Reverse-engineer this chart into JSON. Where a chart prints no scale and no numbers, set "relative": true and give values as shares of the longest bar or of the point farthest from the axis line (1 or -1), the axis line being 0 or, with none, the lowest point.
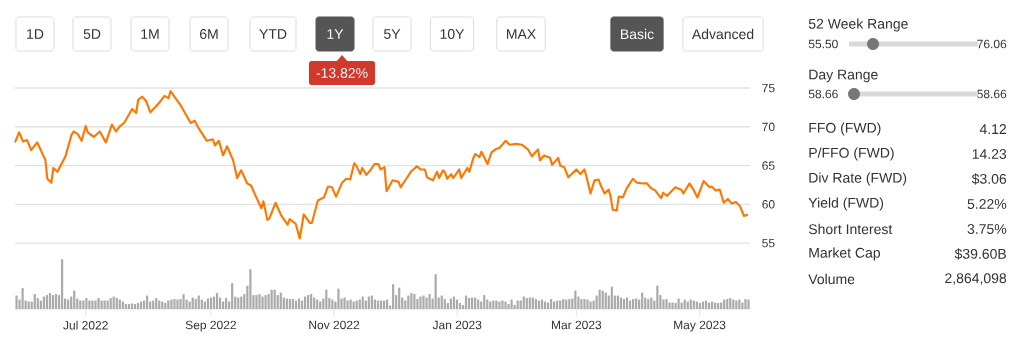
{
  "chart_data": [
    {
      "type": "line",
      "color": "#ff7700",
      "x": [
        "2022-05-27",
        "2022-05-29",
        "2022-05-31",
        "2022-06-02",
        "2022-06-04",
        "2022-06-07",
        "2022-06-10",
        "2022-06-11",
        "2022-06-12",
        "2022-06-14",
        "2022-06-15",
        "2022-06-17",
        "2022-06-21",
        "2022-06-24",
        "2022-06-25",
        "2022-06-27",
        "2022-06-29",
        "2022-07-01",
        "2022-07-02",
        "2022-07-05",
        "2022-07-08",
        "2022-07-11",
        "2022-07-14",
        "2022-07-16",
        "2022-07-18",
        "2022-07-20",
        "2022-07-22",
        "2022-07-24",
        "2022-07-26",
        "2022-07-27",
        "2022-07-29",
        "2022-07-31",
        "2022-08-02",
        "2022-08-05",
        "2022-08-07",
        "2022-08-09",
        "2022-08-11",
        "2022-08-12",
        "2022-08-15",
        "2022-08-17",
        "2022-08-22",
        "2022-08-24",
        "2022-08-26",
        "2022-08-30",
        "2022-09-02",
        "2022-09-03",
        "2022-09-05",
        "2022-09-07",
        "2022-09-09",
        "2022-09-12",
        "2022-09-14",
        "2022-09-16",
        "2022-09-19",
        "2022-09-21",
        "2022-09-23",
        "2022-09-26",
        "2022-09-27",
        "2022-09-29",
        "2022-09-30",
        "2022-10-03",
        "2022-10-06",
        "2022-10-09",
        "2022-10-10",
        "2022-10-13",
        "2022-10-15",
        "2022-10-17",
        "2022-10-20",
        "2022-10-21",
        "2022-10-24",
        "2022-10-27",
        "2022-10-29",
        "2022-10-31",
        "2022-11-02",
        "2022-11-05",
        "2022-11-07",
        "2022-11-09",
        "2022-11-11",
        "2022-11-12",
        "2022-11-14",
        "2022-11-15",
        "2022-11-17",
        "2022-11-19",
        "2022-11-21",
        "2022-11-23",
        "2022-11-24",
        "2022-11-26",
        "2022-11-27",
        "2022-11-30",
        "2022-12-03",
        "2022-12-04",
        "2022-12-07",
        "2022-12-09",
        "2022-12-12",
        "2022-12-14",
        "2022-12-16",
        "2022-12-17",
        "2022-12-20",
        "2022-12-22",
        "2022-12-23",
        "2022-12-25",
        "2022-12-26",
        "2022-12-27",
        "2022-12-29",
        "2022-12-30",
        "2023-01-02",
        "2023-01-03",
        "2023-01-06",
        "2023-01-07",
        "2023-01-09",
        "2023-01-10",
        "2023-01-12",
        "2023-01-13",
        "2023-01-16",
        "2023-01-18",
        "2023-01-20",
        "2023-01-22",
        "2023-01-25",
        "2023-01-27",
        "2023-01-30",
        "2023-02-02",
        "2023-02-05",
        "2023-02-07",
        "2023-02-10",
        "2023-02-11",
        "2023-02-13",
        "2023-02-16",
        "2023-02-17",
        "2023-02-20",
        "2023-02-21",
        "2023-02-23",
        "2023-02-25",
        "2023-03-01",
        "2023-03-03",
        "2023-03-05",
        "2023-03-06",
        "2023-03-08",
        "2023-03-10",
        "2023-03-12",
        "2023-03-13",
        "2023-03-15",
        "2023-03-17",
        "2023-03-18",
        "2023-03-19",
        "2023-03-21",
        "2023-03-22",
        "2023-03-24",
        "2023-03-26",
        "2023-03-29",
        "2023-03-31",
        "2023-04-03",
        "2023-04-05",
        "2023-04-07",
        "2023-04-09",
        "2023-04-12",
        "2023-04-13",
        "2023-04-15",
        "2023-04-19",
        "2023-04-22",
        "2023-04-23",
        "2023-04-26",
        "2023-04-28",
        "2023-04-30",
        "2023-05-03",
        "2023-05-06",
        "2023-05-07",
        "2023-05-09",
        "2023-05-11",
        "2023-05-13",
        "2023-05-15",
        "2023-05-17",
        "2023-05-19",
        "2023-05-21",
        "2023-05-23",
        "2023-05-25"
      ],
      "values": [
        68.0,
        69.3,
        68.1,
        68.3,
        67.0,
        68.0,
        66.3,
        65.8,
        63.3,
        62.8,
        64.7,
        64.2,
        66.2,
        69.0,
        69.4,
        69.1,
        68.2,
        70.1,
        69.3,
        68.7,
        69.4,
        68.0,
        70.3,
        69.4,
        70.1,
        70.5,
        71.4,
        72.3,
        71.8,
        73.5,
        73.9,
        73.3,
        71.9,
        72.7,
        73.3,
        74.0,
        73.7,
        74.6,
        73.5,
        72.8,
        70.5,
        70.8,
        69.8,
        68.2,
        68.4,
        67.6,
        68.2,
        66.3,
        67.5,
        65.7,
        63.4,
        64.4,
        62.7,
        62.4,
        61.2,
        59.5,
        60.4,
        58.0,
        58.2,
        60.2,
        58.5,
        57.4,
        58.1,
        57.5,
        55.6,
        58.7,
        57.6,
        57.6,
        60.5,
        60.9,
        62.3,
        62.2,
        61.0,
        62.8,
        63.3,
        63.2,
        65.3,
        65.0,
        63.9,
        64.7,
        63.8,
        64.4,
        65.2,
        65.2,
        64.5,
        64.8,
        61.7,
        63.1,
        62.9,
        62.2,
        63.4,
        64.2,
        64.9,
        64.5,
        64.5,
        63.5,
        63.1,
        64.2,
        63.4,
        64.4,
        64.1,
        63.3,
        63.9,
        63.4,
        64.5,
        63.4,
        64.7,
        64.2,
        66.0,
        66.5,
        66.1,
        66.8,
        65.2,
        66.7,
        67.1,
        67.3,
        68.2,
        67.7,
        67.8,
        67.7,
        67.1,
        66.2,
        67.1,
        65.7,
        66.3,
        66.0,
        65.1,
        66.0,
        65.0,
        64.8,
        63.5,
        64.5,
        63.9,
        64.5,
        63.6,
        61.4,
        63.1,
        63.2,
        62.5,
        61.4,
        61.9,
        61.0,
        59.3,
        59.2,
        61.0,
        60.9,
        62.1,
        63.3,
        62.8,
        62.7,
        62.7,
        62.1,
        61.8,
        60.8,
        61.5,
        61.1,
        62.2,
        61.9,
        61.4,
        62.7,
        61.9,
        60.9,
        63.0,
        62.2,
        62.3,
        61.8,
        61.9,
        60.2,
        60.7,
        60.1,
        60.3,
        59.8,
        58.5,
        58.7
      ],
      "xlim": [
        "2022-05-27",
        "2023-05-26"
      ],
      "xticks": [
        {
          "value": "2022-07-01",
          "label": "Jul 2022"
        },
        {
          "value": "2022-09-01",
          "label": "Sep 2022"
        },
        {
          "value": "2022-11-01",
          "label": "Nov 2022"
        },
        {
          "value": "2023-01-01",
          "label": "Jan 2023"
        },
        {
          "value": "2023-03-01",
          "label": "Mar 2023"
        },
        {
          "value": "2023-05-01",
          "label": "May 2023"
        }
      ],
      "ylim": [
        46.5,
        75
      ],
      "yticks": [
        55,
        60,
        65,
        70,
        75
      ],
      "grid": "y",
      "annotations": [
        "1D",
        "5D",
        "1M",
        "6M",
        "YTD",
        "1Y",
        "5Y",
        "10Y",
        "MAX",
        "-13.82%",
        "Basic",
        "Advanced"
      ]
    },
    {
      "type": "bar",
      "relative": true,
      "color": "#aaaaaa",
      "categories": [
        null,
        null,
        null,
        null,
        null,
        null,
        null,
        null,
        null,
        null,
        null,
        null,
        null,
        null,
        null,
        null,
        null,
        null,
        null,
        null,
        null,
        null,
        null,
        null,
        null,
        null,
        null,
        null,
        null,
        null,
        null,
        null,
        null,
        null,
        null,
        null,
        null,
        null,
        null,
        null,
        null,
        null,
        null,
        null,
        null,
        null,
        null,
        null,
        null,
        null,
        null,
        null,
        null,
        null,
        null,
        null,
        null,
        null,
        null,
        null,
        null,
        null,
        null,
        null,
        null,
        null,
        null,
        null,
        null,
        null,
        null,
        null,
        null,
        null,
        null,
        null,
        null,
        null,
        null,
        null,
        null,
        null,
        null,
        null,
        null,
        null,
        null,
        null,
        null,
        null,
        null,
        null,
        null,
        null,
        null,
        null,
        null,
        null,
        null,
        null,
        null,
        null,
        null,
        null,
        null,
        null,
        null,
        null,
        null,
        null,
        null,
        null,
        null,
        null,
        null,
        null,
        null,
        null,
        null,
        null,
        null,
        null,
        null,
        null,
        null,
        null,
        null,
        null,
        null,
        null,
        null,
        null,
        null,
        null,
        null,
        null,
        null,
        null,
        null,
        null,
        null,
        null,
        null,
        null,
        null,
        null,
        null,
        null,
        null,
        null,
        null,
        null,
        null,
        null,
        null,
        null,
        null,
        null,
        null,
        null,
        null,
        null,
        null,
        null,
        null,
        null,
        null,
        null,
        null,
        null,
        null,
        null,
        null,
        null,
        null,
        null,
        null,
        null,
        null,
        null,
        null,
        null,
        null,
        null,
        null,
        null,
        null,
        null,
        null,
        null,
        null,
        null,
        null,
        null,
        null,
        null,
        null,
        null,
        null,
        null,
        null,
        null,
        null,
        null,
        null,
        null,
        null,
        null,
        null,
        null,
        null,
        null,
        null,
        null,
        null,
        null,
        null,
        null,
        null,
        null,
        null,
        null,
        null,
        null,
        null,
        null,
        null,
        null,
        null,
        null,
        null,
        null,
        null,
        null,
        null,
        null,
        null,
        null,
        null,
        null,
        null,
        null
      ],
      "values": [
        0.27,
        0.19,
        0.42,
        0.17,
        0.15,
        0.15,
        0.3,
        0.22,
        0.17,
        0.25,
        0.28,
        0.32,
        0.28,
        0.3,
        0.28,
        1,
        0.21,
        0.19,
        0.25,
        0.37,
        0.21,
        0.17,
        0.17,
        0.22,
        0.17,
        0.17,
        0.17,
        0.22,
        0.17,
        0.17,
        0.17,
        0.22,
        0.25,
        0.22,
        0.19,
        0.15,
        0.1,
        0.1,
        0.11,
        0.1,
        0.12,
        0.15,
        0.17,
        0.27,
        0.15,
        0.17,
        0.22,
        0.17,
        0.15,
        0.12,
        0.17,
        0.19,
        0.2,
        0.19,
        0.2,
        0.3,
        0.19,
        0.15,
        0.23,
        0.2,
        0.27,
        0.19,
        0.15,
        0.21,
        0.23,
        0.25,
        0.32,
        0.23,
        0.15,
        0.22,
        0.15,
        0.52,
        0.25,
        0.23,
        0.25,
        0.3,
        0.47,
        0.8,
        0.28,
        0.28,
        0.3,
        0.25,
        0.28,
        0.3,
        0.39,
        0.39,
        0.28,
        0.33,
        0.23,
        0.21,
        0.2,
        0.2,
        0.17,
        0.21,
        0.17,
        0.25,
        0.28,
        0.3,
        0.23,
        0.19,
        0.15,
        0.21,
        0.39,
        0.22,
        0.19,
        0.15,
        0.41,
        0.21,
        0.23,
        0.17,
        0.19,
        0.15,
        0.17,
        0.19,
        0.25,
        0.17,
        0.25,
        0.27,
        0.19,
        0.17,
        0.17,
        0.17,
        0.19,
        0.07,
        0.5,
        0.28,
        0.43,
        0.23,
        0.17,
        0.27,
        0.32,
        0.3,
        0.2,
        0.25,
        0.27,
        0.23,
        0.3,
        0.21,
        0.7,
        0.23,
        0.27,
        0.2,
        0.12,
        0.21,
        0.25,
        0.19,
        0.12,
        0.08,
        0.27,
        0.22,
        0.23,
        0.23,
        0.19,
        0.15,
        0.28,
        0.19,
        0.15,
        0.17,
        0.17,
        0.15,
        0.17,
        0.15,
        0.1,
        0.19,
        0.08,
        0.17,
        0.17,
        0.25,
        0.22,
        0.23,
        0.23,
        0.2,
        0.17,
        0.19,
        0.15,
        0.13,
        0.2,
        0.15,
        0.17,
        0.17,
        0.2,
        0.19,
        0.2,
        0.21,
        0.37,
        0.25,
        0.2,
        0.2,
        0.19,
        0.15,
        0.17,
        0.27,
        0.39,
        0.37,
        0.33,
        0.27,
        0.45,
        0.27,
        0.27,
        0.23,
        0.2,
        0.23,
        0.17,
        0.2,
        0.21,
        0.19,
        0.33,
        0.23,
        0.2,
        0.23,
        0.17,
        0.47,
        0.28,
        0.19,
        0.2,
        0.13,
        0.13,
        0.12,
        0.21,
        0.13,
        0.19,
        0.15,
        0.19,
        0.17,
        0.15,
        0.12,
        0.15,
        0.17,
        0.13,
        0.15,
        0.13,
        0.12,
        0.13,
        0.19,
        0.2,
        0.22,
        0.19,
        0.17,
        0.19,
        0.13,
        0.2,
        0.19
      ]
    },
    {
      "type": "other",
      "annotations": [
        "52 Week Range",
        "55.50",
        "76.06",
        "Day Range",
        "58.66",
        "58.66",
        "FFO (FWD)",
        "4.12",
        "P/FFO (FWD)",
        "14.23",
        "Div Rate (FWD)",
        "$3.06",
        "Yield (FWD)",
        "5.22%",
        "Short Interest",
        "3.75%",
        "Market Cap",
        "$39.60B",
        "Volume",
        "2,864,098"
      ]
    }
  ]
}
